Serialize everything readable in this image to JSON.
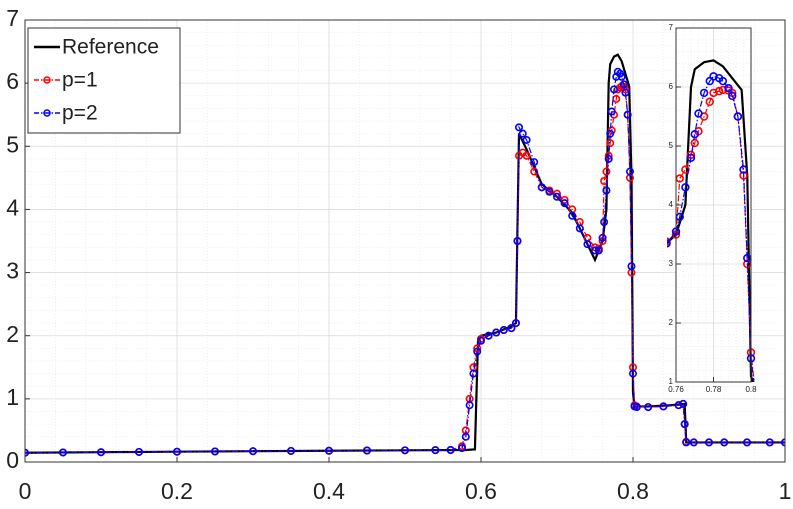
{
  "chart_data": {
    "type": "line",
    "grid": true,
    "legend": "upper left",
    "xlim": [
      0,
      1
    ],
    "ylim": [
      0,
      7
    ],
    "xticks": [
      0,
      0.2,
      0.4,
      0.6,
      0.8,
      1
    ],
    "yticks": [
      0,
      1,
      2,
      3,
      4,
      5,
      6,
      7
    ],
    "series": [
      {
        "name": "Reference",
        "color": "#000000",
        "x": [
          0,
          0.1,
          0.2,
          0.3,
          0.4,
          0.5,
          0.58,
          0.592,
          0.596,
          0.6,
          0.62,
          0.64,
          0.646,
          0.65,
          0.66,
          0.68,
          0.7,
          0.72,
          0.74,
          0.75,
          0.76,
          0.765,
          0.768,
          0.77,
          0.775,
          0.78,
          0.785,
          0.79,
          0.795,
          0.798,
          0.8,
          0.802,
          0.82,
          0.85,
          0.868,
          0.87,
          0.9,
          1
        ],
        "values": [
          0.147,
          0.155,
          0.163,
          0.171,
          0.178,
          0.185,
          0.19,
          0.2,
          1.9,
          2.0,
          2.05,
          2.15,
          2.2,
          5.2,
          4.95,
          4.4,
          4.2,
          3.95,
          3.45,
          3.2,
          3.5,
          4.0,
          6.0,
          6.3,
          6.42,
          6.45,
          6.35,
          6.15,
          5.95,
          4.5,
          1.1,
          0.88,
          0.88,
          0.9,
          0.92,
          0.31,
          0.31,
          0.31
        ]
      },
      {
        "name": "p=1",
        "color": "#ff0000",
        "x": [
          0,
          0.05,
          0.1,
          0.15,
          0.2,
          0.25,
          0.3,
          0.35,
          0.4,
          0.45,
          0.5,
          0.54,
          0.56,
          0.575,
          0.58,
          0.585,
          0.59,
          0.595,
          0.6,
          0.61,
          0.62,
          0.63,
          0.64,
          0.646,
          0.648,
          0.65,
          0.655,
          0.66,
          0.67,
          0.68,
          0.69,
          0.7,
          0.71,
          0.72,
          0.73,
          0.74,
          0.75,
          0.755,
          0.76,
          0.762,
          0.765,
          0.768,
          0.77,
          0.772,
          0.775,
          0.778,
          0.78,
          0.783,
          0.785,
          0.788,
          0.79,
          0.793,
          0.796,
          0.798,
          0.8,
          0.802,
          0.805,
          0.82,
          0.84,
          0.86,
          0.866,
          0.868,
          0.87,
          0.88,
          0.9,
          0.92,
          0.95,
          0.98,
          1
        ],
        "values": [
          0.147,
          0.151,
          0.155,
          0.159,
          0.163,
          0.167,
          0.171,
          0.175,
          0.178,
          0.182,
          0.185,
          0.188,
          0.19,
          0.25,
          0.5,
          1.0,
          1.5,
          1.8,
          1.95,
          2.0,
          2.05,
          2.09,
          2.12,
          2.2,
          3.5,
          4.85,
          4.9,
          4.85,
          4.6,
          4.35,
          4.3,
          4.25,
          4.15,
          4.0,
          3.8,
          3.55,
          3.4,
          3.38,
          3.5,
          4.45,
          4.6,
          4.85,
          5.05,
          5.25,
          5.5,
          5.75,
          5.9,
          5.93,
          5.95,
          5.94,
          5.9,
          5.5,
          4.5,
          3.0,
          1.5,
          0.9,
          0.88,
          0.87,
          0.88,
          0.9,
          0.92,
          0.6,
          0.32,
          0.31,
          0.31,
          0.31,
          0.31,
          0.31,
          0.31
        ]
      },
      {
        "name": "p=2",
        "color": "#0000ff",
        "x": [
          0,
          0.05,
          0.1,
          0.15,
          0.2,
          0.25,
          0.3,
          0.35,
          0.4,
          0.45,
          0.5,
          0.54,
          0.56,
          0.575,
          0.58,
          0.585,
          0.59,
          0.595,
          0.6,
          0.61,
          0.62,
          0.63,
          0.64,
          0.646,
          0.648,
          0.65,
          0.655,
          0.66,
          0.67,
          0.68,
          0.69,
          0.7,
          0.71,
          0.72,
          0.73,
          0.74,
          0.75,
          0.755,
          0.76,
          0.762,
          0.765,
          0.768,
          0.77,
          0.772,
          0.775,
          0.778,
          0.78,
          0.783,
          0.785,
          0.788,
          0.79,
          0.793,
          0.796,
          0.798,
          0.8,
          0.802,
          0.805,
          0.82,
          0.84,
          0.86,
          0.866,
          0.868,
          0.87,
          0.88,
          0.9,
          0.92,
          0.95,
          0.98,
          1
        ],
        "values": [
          0.147,
          0.151,
          0.155,
          0.159,
          0.163,
          0.167,
          0.171,
          0.175,
          0.178,
          0.182,
          0.185,
          0.188,
          0.19,
          0.22,
          0.4,
          0.9,
          1.4,
          1.75,
          1.92,
          2.0,
          2.05,
          2.09,
          2.12,
          2.2,
          3.5,
          5.3,
          5.2,
          5.1,
          4.75,
          4.35,
          4.28,
          4.2,
          4.1,
          3.9,
          3.7,
          3.45,
          3.35,
          3.35,
          3.55,
          3.8,
          4.3,
          4.8,
          5.2,
          5.55,
          5.9,
          6.1,
          6.18,
          6.15,
          6.1,
          5.98,
          5.85,
          5.5,
          4.6,
          3.1,
          1.4,
          0.88,
          0.87,
          0.87,
          0.88,
          0.9,
          0.92,
          0.6,
          0.31,
          0.31,
          0.31,
          0.31,
          0.31,
          0.31,
          0.31
        ]
      }
    ],
    "inset": {
      "xlim": [
        0.76,
        0.8
      ],
      "ylim": [
        1,
        7
      ],
      "xticks": [
        0.76,
        0.78,
        0.8
      ],
      "yticks": [
        1,
        2,
        3,
        4,
        5,
        6,
        7
      ]
    }
  }
}
